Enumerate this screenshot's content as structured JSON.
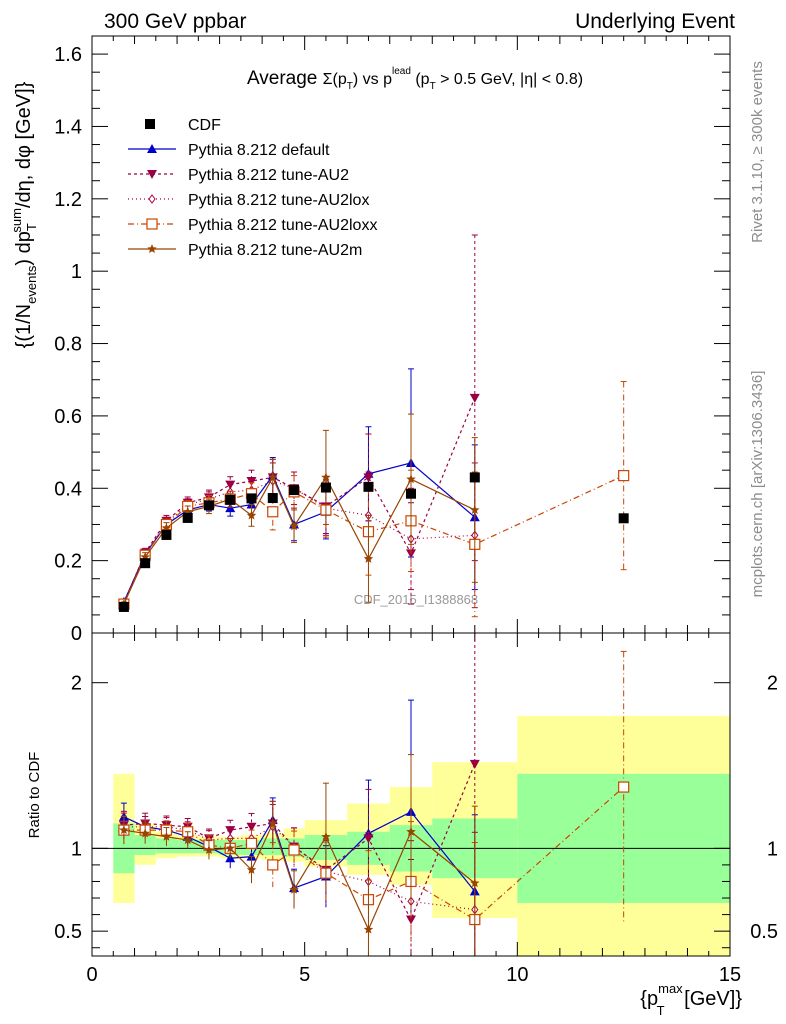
{
  "header": {
    "energy_label": "300 GeV ppbar",
    "process_label": "Underlying Event"
  },
  "side_labels": {
    "rivet": "Rivet 3.1.10, ≥ 300k events",
    "mcplots": "mcplots.cern.ch [arXiv:1306.3436]"
  },
  "chart_data": {
    "type": "scatter",
    "title": "Average Σ(pT) vs pT^lead (pT > 0.5 GeV, |η| < 0.8)",
    "title_parts": {
      "prefix": "Average ",
      "sigma": "Σ(p",
      "sub_t": "T",
      "paren_close": ")",
      "vs": " vs p",
      "sup_lead": "lead",
      "cuts": " (p",
      "cuts_rest": " > 0.5 GeV, |η| < 0.8)"
    },
    "watermark": "CDF_2015_I1388868",
    "xlabel": "{p_T^max [GeV]}",
    "xlabel_parts": {
      "open": "{p",
      "sup": "max",
      "sub": "T",
      "rest": " [GeV]}"
    },
    "ylabel": "{(1/N_events) dp_T^sum/dη, dφ [GeV]}",
    "ylabel_parts": {
      "a": "{(1/N",
      "a_sub": "events",
      "b": ") dp",
      "b_sub": "T",
      "b_sup": "sum",
      "c": "/dη, dφ [GeV]}"
    },
    "ratio_ylabel": "Ratio to CDF",
    "xlim": [
      0,
      15
    ],
    "ylim": [
      0,
      1.65
    ],
    "ratio_ylim": [
      0.35,
      2.3
    ],
    "x_ticks": [
      {
        "v": 0,
        "label": "0"
      },
      {
        "v": 5,
        "label": "5"
      },
      {
        "v": 10,
        "label": "10"
      },
      {
        "v": 15,
        "label": "15"
      }
    ],
    "y_ticks": [
      {
        "v": 0,
        "label": "0"
      },
      {
        "v": 0.2,
        "label": "0.2"
      },
      {
        "v": 0.4,
        "label": "0.4"
      },
      {
        "v": 0.6,
        "label": "0.6"
      },
      {
        "v": 0.8,
        "label": "0.8"
      },
      {
        "v": 1.0,
        "label": "1"
      },
      {
        "v": 1.2,
        "label": "1.2"
      },
      {
        "v": 1.4,
        "label": "1.4"
      },
      {
        "v": 1.6,
        "label": "1.6"
      }
    ],
    "ratio_ticks": [
      {
        "v": 0.5,
        "label": "0.5"
      },
      {
        "v": 1,
        "label": "1"
      },
      {
        "v": 2,
        "label": "2"
      }
    ],
    "bands": [
      {
        "x0": 0.5,
        "x1": 1.0,
        "g": [
          0.85,
          1.15
        ],
        "y": [
          0.67,
          1.45
        ]
      },
      {
        "x0": 1.0,
        "x1": 1.5,
        "g": [
          0.96,
          1.08
        ],
        "y": [
          0.9,
          1.15
        ]
      },
      {
        "x0": 1.5,
        "x1": 2.0,
        "g": [
          0.97,
          1.06
        ],
        "y": [
          0.94,
          1.1
        ]
      },
      {
        "x0": 2.0,
        "x1": 2.5,
        "g": [
          0.97,
          1.05
        ],
        "y": [
          0.95,
          1.08
        ]
      },
      {
        "x0": 2.5,
        "x1": 3.0,
        "g": [
          0.97,
          1.05
        ],
        "y": [
          0.95,
          1.07
        ]
      },
      {
        "x0": 3.0,
        "x1": 3.5,
        "g": [
          0.96,
          1.05
        ],
        "y": [
          0.94,
          1.07
        ]
      },
      {
        "x0": 3.5,
        "x1": 4.0,
        "g": [
          0.96,
          1.05
        ],
        "y": [
          0.94,
          1.08
        ]
      },
      {
        "x0": 4.0,
        "x1": 4.5,
        "g": [
          0.96,
          1.06
        ],
        "y": [
          0.93,
          1.09
        ]
      },
      {
        "x0": 4.5,
        "x1": 5.0,
        "g": [
          0.95,
          1.06
        ],
        "y": [
          0.92,
          1.12
        ]
      },
      {
        "x0": 5.0,
        "x1": 6.0,
        "g": [
          0.93,
          1.08
        ],
        "y": [
          0.89,
          1.17
        ]
      },
      {
        "x0": 6.0,
        "x1": 7.0,
        "g": [
          0.9,
          1.1
        ],
        "y": [
          0.84,
          1.27
        ]
      },
      {
        "x0": 7.0,
        "x1": 8.0,
        "g": [
          0.86,
          1.14
        ],
        "y": [
          0.78,
          1.37
        ]
      },
      {
        "x0": 8.0,
        "x1": 10.0,
        "g": [
          0.82,
          1.18
        ],
        "y": [
          0.58,
          1.52
        ]
      },
      {
        "x0": 10.0,
        "x1": 15.0,
        "g": [
          0.67,
          1.45
        ],
        "y": [
          0.35,
          1.8
        ]
      }
    ],
    "cdf": {
      "name": "CDF",
      "x": [
        0.75,
        1.25,
        1.75,
        2.25,
        2.75,
        3.25,
        3.75,
        4.25,
        4.75,
        5.5,
        6.5,
        7.5,
        9.0,
        12.5
      ],
      "y": [
        0.072,
        0.193,
        0.271,
        0.318,
        0.353,
        0.368,
        0.372,
        0.373,
        0.395,
        0.402,
        0.404,
        0.385,
        0.43,
        0.317
      ]
    },
    "series": [
      {
        "name": "Pythia 8.212 default",
        "color": "#0000cc",
        "marker": "triangle-up",
        "dash": "",
        "x": [
          0.75,
          1.25,
          1.75,
          2.25,
          2.75,
          3.25,
          3.75,
          4.25,
          4.75,
          5.5,
          6.5,
          7.5,
          9.0
        ],
        "y": [
          0.086,
          0.218,
          0.3,
          0.34,
          0.355,
          0.345,
          0.355,
          0.435,
          0.3,
          0.335,
          0.44,
          0.47,
          0.32
        ],
        "err": [
          0.006,
          0.012,
          0.015,
          0.016,
          0.018,
          0.022,
          0.03,
          0.05,
          0.045,
          0.075,
          0.13,
          0.26,
          0.2
        ],
        "ratio": [
          1.19,
          1.13,
          1.11,
          1.07,
          1.01,
          0.94,
          0.95,
          1.17,
          0.76,
          0.83,
          1.09,
          1.22,
          0.74
        ]
      },
      {
        "name": "Pythia 8.212 tune-AU2",
        "color": "#990044",
        "marker": "triangle-down",
        "dash": "3,3",
        "x": [
          0.75,
          1.25,
          1.75,
          2.25,
          2.75,
          3.25,
          3.75,
          4.25,
          4.75,
          5.5,
          6.5,
          7.5,
          9.0
        ],
        "y": [
          0.082,
          0.222,
          0.31,
          0.36,
          0.375,
          0.41,
          0.42,
          0.43,
          0.4,
          0.35,
          0.43,
          0.22,
          0.65
        ],
        "err": [
          0.006,
          0.012,
          0.015,
          0.016,
          0.02,
          0.022,
          0.03,
          0.05,
          0.045,
          0.075,
          0.12,
          0.14,
          0.45
        ],
        "ratio": [
          1.14,
          1.15,
          1.14,
          1.13,
          1.06,
          1.11,
          1.13,
          1.15,
          1.01,
          0.87,
          1.06,
          0.57,
          1.51
        ]
      },
      {
        "name": "Pythia 8.212 tune-AU2lox",
        "color": "#aa0044",
        "marker": "diamond-open",
        "dash": "1,3",
        "x": [
          0.75,
          1.25,
          1.75,
          2.25,
          2.75,
          3.25,
          3.75,
          4.25,
          4.75,
          5.5,
          6.5,
          7.5,
          9.0
        ],
        "y": [
          0.082,
          0.218,
          0.305,
          0.355,
          0.37,
          0.39,
          0.395,
          0.42,
          0.4,
          0.345,
          0.325,
          0.26,
          0.27
        ],
        "err": [
          0.006,
          0.012,
          0.015,
          0.016,
          0.02,
          0.022,
          0.03,
          0.05,
          0.045,
          0.075,
          0.12,
          0.14,
          0.2
        ],
        "ratio": [
          1.13,
          1.13,
          1.13,
          1.11,
          1.05,
          1.06,
          1.06,
          1.13,
          1.01,
          0.86,
          0.8,
          0.68,
          0.63
        ]
      },
      {
        "name": "Pythia 8.212 tune-AU2loxx",
        "color": "#cc4400",
        "marker": "square-open",
        "dash": "6,3,1,3",
        "x": [
          0.75,
          1.25,
          1.75,
          2.25,
          2.75,
          3.25,
          3.75,
          4.25,
          4.75,
          5.5,
          6.5,
          7.5,
          9.0,
          12.5
        ],
        "y": [
          0.08,
          0.215,
          0.3,
          0.35,
          0.36,
          0.37,
          0.385,
          0.335,
          0.39,
          0.34,
          0.28,
          0.31,
          0.245,
          0.435
        ],
        "err": [
          0.006,
          0.012,
          0.015,
          0.016,
          0.02,
          0.022,
          0.03,
          0.05,
          0.045,
          0.075,
          0.12,
          0.14,
          0.2,
          0.26
        ],
        "ratio": [
          1.11,
          1.11,
          1.11,
          1.1,
          1.02,
          1.0,
          1.03,
          0.9,
          0.99,
          0.85,
          0.69,
          0.8,
          0.57,
          1.37
        ]
      },
      {
        "name": "Pythia 8.212 tune-AU2m",
        "color": "#994400",
        "marker": "star",
        "dash": "",
        "x": [
          0.75,
          1.25,
          1.75,
          2.25,
          2.75,
          3.25,
          3.75,
          4.25,
          4.75,
          5.5,
          6.5,
          7.5,
          9.0
        ],
        "y": [
          0.08,
          0.21,
          0.29,
          0.335,
          0.35,
          0.37,
          0.325,
          0.43,
          0.295,
          0.43,
          0.205,
          0.425,
          0.34
        ],
        "err": [
          0.006,
          0.012,
          0.015,
          0.016,
          0.02,
          0.022,
          0.03,
          0.05,
          0.045,
          0.13,
          0.12,
          0.18,
          0.2
        ],
        "ratio": [
          1.11,
          1.09,
          1.07,
          1.05,
          0.99,
          1.0,
          0.87,
          1.15,
          0.75,
          1.07,
          0.51,
          1.1,
          0.79
        ]
      }
    ]
  }
}
